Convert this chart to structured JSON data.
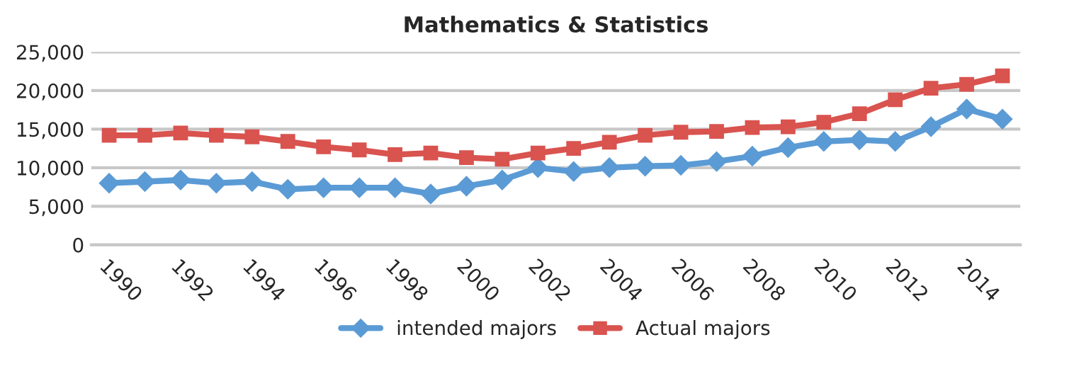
{
  "chart_data": {
    "type": "line",
    "title": "Mathematics & Statistics",
    "categories": [
      "1990",
      null,
      "1992",
      null,
      "1994",
      null,
      "1996",
      null,
      "1998",
      null,
      "2000",
      null,
      "2002",
      null,
      "2004",
      null,
      "2006",
      null,
      "2008",
      null,
      "2010",
      null,
      "2012",
      null,
      "2014",
      null
    ],
    "series": [
      {
        "name": "intended majors",
        "color": "#5b9bd5",
        "marker": "diamond",
        "values": [
          8000,
          8200,
          8400,
          8000,
          8200,
          7200,
          7400,
          7400,
          7400,
          6600,
          7600,
          8400,
          10000,
          9500,
          10000,
          10200,
          10300,
          10800,
          11500,
          12600,
          13400,
          13600,
          13400,
          15300,
          17600,
          16300
        ]
      },
      {
        "name": "Actual majors",
        "color": "#d9534f",
        "marker": "square",
        "values": [
          14200,
          14200,
          14500,
          14200,
          14000,
          13400,
          12700,
          12300,
          11700,
          11900,
          11300,
          11100,
          11900,
          12500,
          13300,
          14200,
          14600,
          14700,
          15200,
          15300,
          15900,
          17000,
          18800,
          20300,
          20800,
          21900
        ]
      }
    ],
    "ylim": [
      0,
      25000
    ],
    "yticks": [
      {
        "value": 0,
        "label": "0"
      },
      {
        "value": 5000,
        "label": "5,000"
      },
      {
        "value": 10000,
        "label": "10,000"
      },
      {
        "value": 15000,
        "label": "15,000"
      },
      {
        "value": 20000,
        "label": "20,000"
      },
      {
        "value": 25000,
        "label": "25,000"
      }
    ],
    "grid": "y",
    "legend": "bottom",
    "line_style": "solid"
  }
}
